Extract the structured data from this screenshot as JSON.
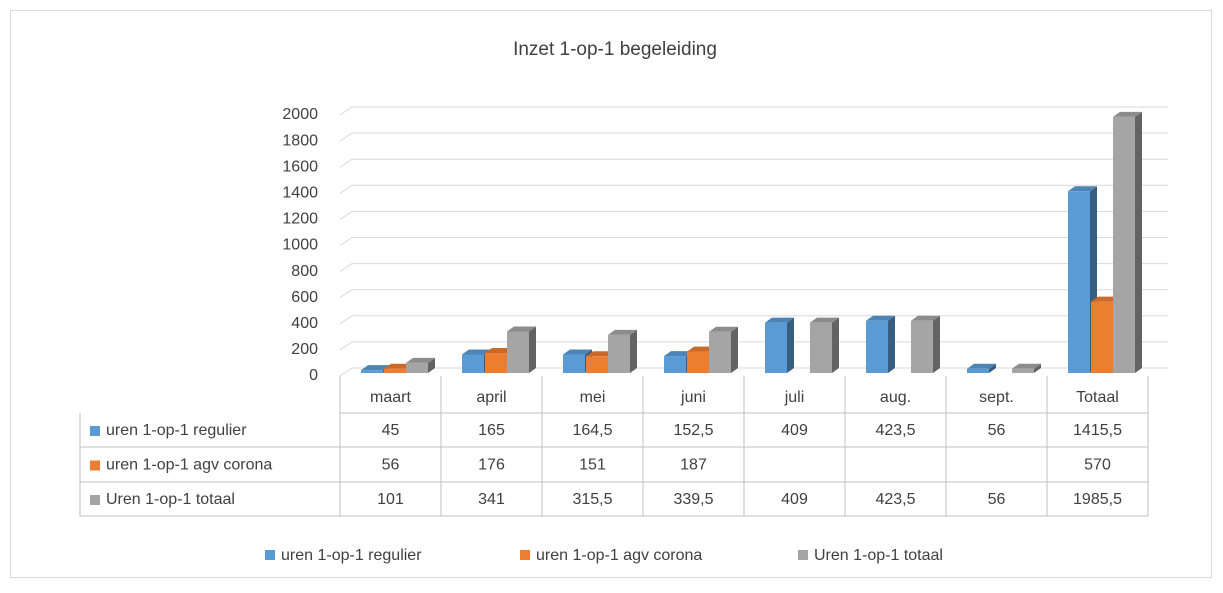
{
  "chart_data": {
    "type": "bar3d",
    "title": "Inzet 1-op-1 begeleiding",
    "categories": [
      "maart",
      "april",
      "mei",
      "juni",
      "juli",
      "aug.",
      "sept.",
      "Totaal"
    ],
    "series": [
      {
        "name": "uren 1-op-1 regulier",
        "color": "#5b9bd5",
        "values": [
          45,
          165,
          164.5,
          152.5,
          409,
          423.5,
          56,
          1415.5
        ],
        "value_labels": [
          "45",
          "165",
          "164,5",
          "152,5",
          "409",
          "423,5",
          "56",
          "1415,5"
        ]
      },
      {
        "name": "uren 1-op-1 agv corona",
        "color": "#ed7d31",
        "values": [
          56,
          176,
          151,
          187,
          null,
          null,
          null,
          570
        ],
        "value_labels": [
          "56",
          "176",
          "151",
          "187",
          null,
          null,
          null,
          "570"
        ]
      },
      {
        "name": "Uren 1-op-1 totaal",
        "color": "#a5a5a5",
        "values": [
          101,
          341,
          315.5,
          339.5,
          409,
          423.5,
          56,
          1985.5
        ],
        "value_labels": [
          "101",
          "341",
          "315,5",
          "339,5",
          "409",
          "423,5",
          "56",
          "1985,5"
        ]
      }
    ],
    "ylim": [
      0,
      2000
    ],
    "yticks": [
      0,
      200,
      400,
      600,
      800,
      1000,
      1200,
      1400,
      1600,
      1800,
      2000
    ],
    "grid": true,
    "legend": "bottom"
  }
}
